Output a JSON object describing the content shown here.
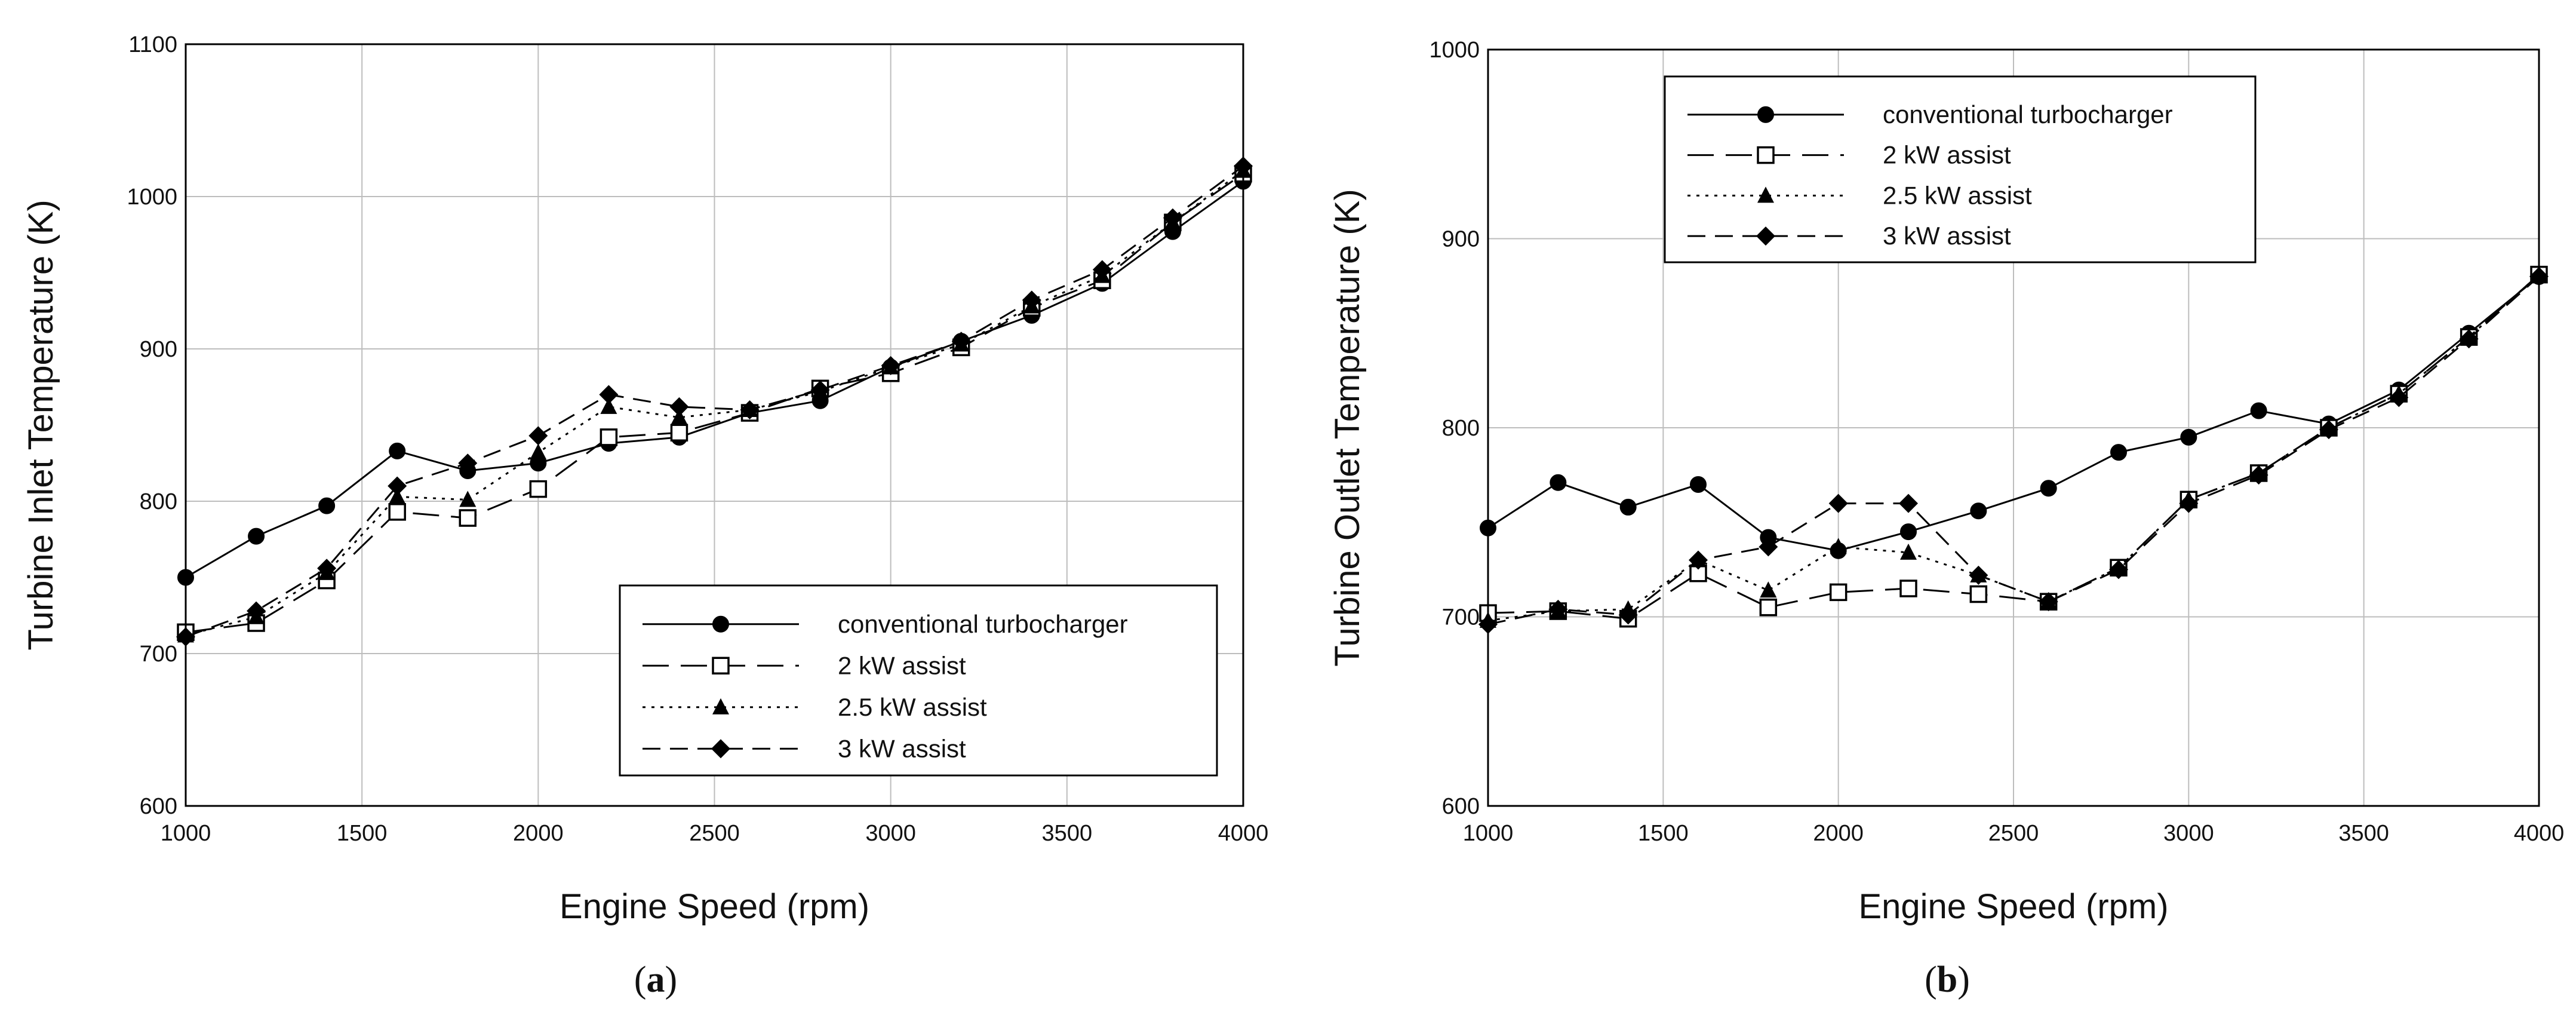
{
  "chart_data": [
    {
      "type": "line",
      "panel_label": "a",
      "xlabel": "Engine Speed (rpm)",
      "ylabel": "Turbine Inlet Temperature (K)",
      "xlim": [
        1000,
        4000
      ],
      "ylim": [
        600,
        1100
      ],
      "xticks": [
        "1000",
        "1500",
        "2000",
        "2500",
        "3000",
        "3500",
        "4000"
      ],
      "yticks": [
        "600",
        "700",
        "800",
        "900",
        "1000",
        "1100"
      ],
      "grid": true,
      "legend_position": "bottom-right",
      "x": [
        1000,
        1200,
        1400,
        1600,
        1800,
        2000,
        2200,
        2400,
        2600,
        2800,
        3000,
        3200,
        3400,
        3600,
        3800,
        4000
      ],
      "series": [
        {
          "name": "conventional turbocharger",
          "marker": "circle",
          "line": "solid",
          "values": [
            750,
            777,
            797,
            833,
            820,
            825,
            838,
            842,
            858,
            866,
            888,
            905,
            922,
            943,
            977,
            1010
          ]
        },
        {
          "name": "2 kW assist",
          "marker": "square-open",
          "line": "longdash",
          "values": [
            714,
            720,
            748,
            793,
            789,
            808,
            842,
            845,
            858,
            874,
            884,
            901,
            927,
            945,
            983,
            1015
          ]
        },
        {
          "name": "2.5 kW assist",
          "marker": "triangle",
          "line": "dotted",
          "values": [
            712,
            724,
            753,
            803,
            801,
            832,
            862,
            855,
            860,
            872,
            888,
            903,
            928,
            948,
            983,
            1017
          ]
        },
        {
          "name": "3 kW assist",
          "marker": "diamond",
          "line": "dashed",
          "values": [
            711,
            728,
            756,
            810,
            825,
            843,
            870,
            862,
            860,
            873,
            889,
            905,
            932,
            952,
            986,
            1020
          ]
        }
      ]
    },
    {
      "type": "line",
      "panel_label": "b",
      "xlabel": "Engine Speed (rpm)",
      "ylabel": "Turbine Outlet Temperature (K)",
      "xlim": [
        1000,
        4000
      ],
      "ylim": [
        600,
        1000
      ],
      "xticks": [
        "1000",
        "1500",
        "2000",
        "2500",
        "3000",
        "3500",
        "4000"
      ],
      "yticks": [
        "600",
        "700",
        "800",
        "900",
        "1000"
      ],
      "grid": true,
      "legend_position": "top-center",
      "x": [
        1000,
        1200,
        1400,
        1600,
        1800,
        2000,
        2200,
        2400,
        2600,
        2800,
        3000,
        3200,
        3400,
        3600,
        3800,
        4000
      ],
      "series": [
        {
          "name": "conventional turbocharger",
          "marker": "circle",
          "line": "solid",
          "values": [
            747,
            771,
            758,
            770,
            742,
            735,
            745,
            756,
            768,
            787,
            795,
            809,
            802,
            820,
            850,
            880
          ]
        },
        {
          "name": "2 kW assist",
          "marker": "square-open",
          "line": "longdash",
          "values": [
            702,
            703,
            699,
            723,
            705,
            713,
            715,
            712,
            708,
            726,
            762,
            776,
            800,
            818,
            848,
            881
          ]
        },
        {
          "name": "2.5 kW assist",
          "marker": "triangle",
          "line": "dotted",
          "values": [
            698,
            703,
            704,
            730,
            714,
            737,
            734,
            722,
            708,
            726,
            762,
            776,
            800,
            818,
            848,
            881
          ]
        },
        {
          "name": "3 kW assist",
          "marker": "diamond",
          "line": "dashed",
          "values": [
            696,
            704,
            701,
            730,
            737,
            760,
            760,
            722,
            708,
            725,
            760,
            775,
            799,
            816,
            847,
            880
          ]
        }
      ]
    }
  ]
}
